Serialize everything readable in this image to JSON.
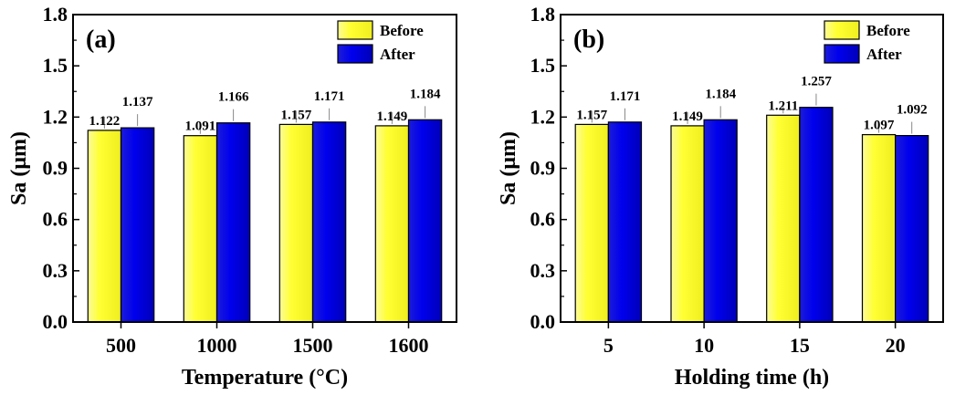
{
  "colors": {
    "before_fill": "#ffff33",
    "before_shade": "#f0f060",
    "after_fill": "#0000ee",
    "after_shade": "#2020c0"
  },
  "chart_data": [
    {
      "type": "bar",
      "panel_label": "(a)",
      "xlabel": "Temperature (°C)",
      "ylabel": "Sa (μm)",
      "categories": [
        "500",
        "1000",
        "1500",
        "1600"
      ],
      "ylim": [
        0,
        1.8
      ],
      "yticks": [
        "0.0",
        "0.3",
        "0.6",
        "0.9",
        "1.2",
        "1.5",
        "1.8"
      ],
      "grid": false,
      "legend_position": "top-right",
      "series": [
        {
          "name": "Before",
          "values": [
            1.122,
            1.091,
            1.157,
            1.149
          ],
          "labels": [
            "1.122",
            "1.091",
            "1.157",
            "1.149"
          ]
        },
        {
          "name": "After",
          "values": [
            1.137,
            1.166,
            1.171,
            1.184
          ],
          "labels": [
            "1.137",
            "1.166",
            "1.171",
            "1.184"
          ]
        }
      ]
    },
    {
      "type": "bar",
      "panel_label": "(b)",
      "xlabel": "Holding time (h)",
      "ylabel": "Sa (μm)",
      "categories": [
        "5",
        "10",
        "15",
        "20"
      ],
      "ylim": [
        0,
        1.8
      ],
      "yticks": [
        "0.0",
        "0.3",
        "0.6",
        "0.9",
        "1.2",
        "1.5",
        "1.8"
      ],
      "grid": false,
      "legend_position": "top-right",
      "series": [
        {
          "name": "Before",
          "values": [
            1.157,
            1.149,
            1.211,
            1.097
          ],
          "labels": [
            "1.157",
            "1.149",
            "1.211",
            "1.097"
          ]
        },
        {
          "name": "After",
          "values": [
            1.171,
            1.184,
            1.257,
            1.092
          ],
          "labels": [
            "1.171",
            "1.184",
            "1.257",
            "1.092"
          ]
        }
      ]
    }
  ]
}
